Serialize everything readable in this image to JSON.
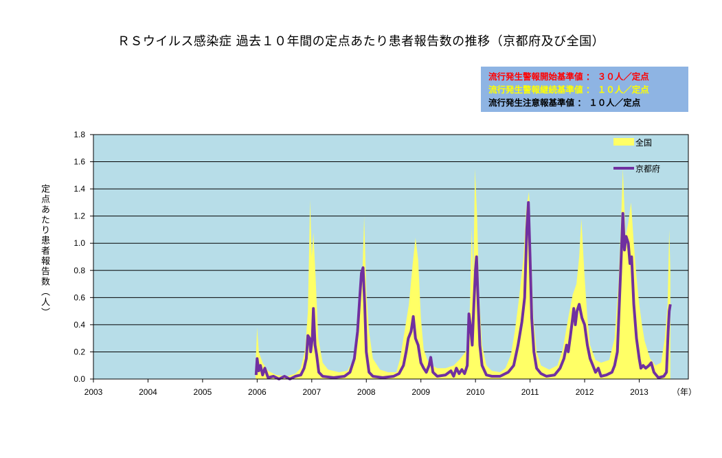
{
  "chart_data": {
    "type": "area",
    "title": "ＲＳウイルス感染症 過去１０年間の定点あたり患者報告数の推移（京都府及び全国）",
    "ylabel": "定点あたり患者報告数（人）",
    "xlabel": "（年）",
    "ylim": [
      0,
      1.8
    ],
    "yticks": [
      "0.0",
      "0.2",
      "0.4",
      "0.6",
      "0.8",
      "1.0",
      "1.2",
      "1.4",
      "1.6",
      "1.8"
    ],
    "xlim": [
      2003,
      2013.9
    ],
    "xticks": [
      "2003",
      "2004",
      "2005",
      "2006",
      "2007",
      "2008",
      "2009",
      "2010",
      "2011",
      "2012",
      "2013"
    ],
    "grid": true,
    "legend_position": "top-right",
    "background_color": "#b7dde8",
    "series": [
      {
        "name": "全国",
        "kind": "area",
        "color": "#ffff66",
        "points": [
          [
            2005.97,
            0.1
          ],
          [
            2006.0,
            0.38
          ],
          [
            2006.03,
            0.2
          ],
          [
            2006.1,
            0.12
          ],
          [
            2006.2,
            0.06
          ],
          [
            2006.35,
            0.03
          ],
          [
            2006.55,
            0.02
          ],
          [
            2006.7,
            0.04
          ],
          [
            2006.8,
            0.08
          ],
          [
            2006.88,
            0.22
          ],
          [
            2006.93,
            0.5
          ],
          [
            2006.97,
            1.32
          ],
          [
            2007.0,
            0.9
          ],
          [
            2007.03,
            1.08
          ],
          [
            2007.07,
            0.75
          ],
          [
            2007.12,
            0.3
          ],
          [
            2007.2,
            0.12
          ],
          [
            2007.3,
            0.07
          ],
          [
            2007.5,
            0.05
          ],
          [
            2007.65,
            0.06
          ],
          [
            2007.78,
            0.15
          ],
          [
            2007.85,
            0.35
          ],
          [
            2007.9,
            0.65
          ],
          [
            2007.93,
            0.8
          ],
          [
            2007.96,
            1.2
          ],
          [
            2008.0,
            0.65
          ],
          [
            2008.05,
            0.35
          ],
          [
            2008.12,
            0.15
          ],
          [
            2008.25,
            0.07
          ],
          [
            2008.4,
            0.05
          ],
          [
            2008.55,
            0.05
          ],
          [
            2008.62,
            0.15
          ],
          [
            2008.7,
            0.35
          ],
          [
            2008.78,
            0.55
          ],
          [
            2008.85,
            0.85
          ],
          [
            2008.9,
            1.04
          ],
          [
            2008.95,
            0.88
          ],
          [
            2009.0,
            0.45
          ],
          [
            2009.05,
            0.22
          ],
          [
            2009.12,
            0.14
          ],
          [
            2009.2,
            0.1
          ],
          [
            2009.3,
            0.08
          ],
          [
            2009.45,
            0.08
          ],
          [
            2009.6,
            0.1
          ],
          [
            2009.7,
            0.14
          ],
          [
            2009.78,
            0.18
          ],
          [
            2009.85,
            0.22
          ],
          [
            2009.9,
            0.55
          ],
          [
            2009.93,
            1.12
          ],
          [
            2009.96,
            0.75
          ],
          [
            2009.99,
            1.55
          ],
          [
            2010.03,
            1.2
          ],
          [
            2010.07,
            0.6
          ],
          [
            2010.12,
            0.25
          ],
          [
            2010.2,
            0.1
          ],
          [
            2010.3,
            0.06
          ],
          [
            2010.45,
            0.05
          ],
          [
            2010.55,
            0.08
          ],
          [
            2010.65,
            0.18
          ],
          [
            2010.72,
            0.35
          ],
          [
            2010.8,
            0.6
          ],
          [
            2010.88,
            0.9
          ],
          [
            2010.93,
            1.25
          ],
          [
            2010.98,
            1.38
          ],
          [
            2011.02,
            0.95
          ],
          [
            2011.06,
            0.45
          ],
          [
            2011.12,
            0.2
          ],
          [
            2011.2,
            0.1
          ],
          [
            2011.35,
            0.07
          ],
          [
            2011.5,
            0.1
          ],
          [
            2011.6,
            0.22
          ],
          [
            2011.7,
            0.45
          ],
          [
            2011.78,
            0.62
          ],
          [
            2011.85,
            0.7
          ],
          [
            2011.9,
            0.9
          ],
          [
            2011.94,
            1.18
          ],
          [
            2012.0,
            0.75
          ],
          [
            2012.05,
            0.45
          ],
          [
            2012.1,
            0.25
          ],
          [
            2012.2,
            0.14
          ],
          [
            2012.3,
            0.12
          ],
          [
            2012.45,
            0.14
          ],
          [
            2012.55,
            0.3
          ],
          [
            2012.62,
            0.7
          ],
          [
            2012.67,
            1.2
          ],
          [
            2012.7,
            1.55
          ],
          [
            2012.75,
            1.05
          ],
          [
            2012.8,
            1.15
          ],
          [
            2012.85,
            1.3
          ],
          [
            2012.9,
            1.0
          ],
          [
            2012.95,
            0.75
          ],
          [
            2013.0,
            0.55
          ],
          [
            2013.05,
            0.4
          ],
          [
            2013.1,
            0.28
          ],
          [
            2013.2,
            0.15
          ],
          [
            2013.3,
            0.1
          ],
          [
            2013.4,
            0.12
          ],
          [
            2013.47,
            0.3
          ],
          [
            2013.52,
            0.55
          ],
          [
            2013.55,
            1.1
          ],
          [
            2013.57,
            0.8
          ]
        ]
      },
      {
        "name": "京都府",
        "kind": "line",
        "color": "#7030a0",
        "points": [
          [
            2005.98,
            0.03
          ],
          [
            2006.0,
            0.15
          ],
          [
            2006.03,
            0.06
          ],
          [
            2006.06,
            0.1
          ],
          [
            2006.1,
            0.03
          ],
          [
            2006.14,
            0.08
          ],
          [
            2006.2,
            0.01
          ],
          [
            2006.3,
            0.02
          ],
          [
            2006.4,
            0.0
          ],
          [
            2006.5,
            0.02
          ],
          [
            2006.6,
            0.0
          ],
          [
            2006.7,
            0.02
          ],
          [
            2006.8,
            0.03
          ],
          [
            2006.86,
            0.08
          ],
          [
            2006.9,
            0.15
          ],
          [
            2006.93,
            0.32
          ],
          [
            2006.96,
            0.3
          ],
          [
            2006.98,
            0.2
          ],
          [
            2007.01,
            0.3
          ],
          [
            2007.03,
            0.52
          ],
          [
            2007.06,
            0.25
          ],
          [
            2007.09,
            0.18
          ],
          [
            2007.13,
            0.05
          ],
          [
            2007.2,
            0.02
          ],
          [
            2007.4,
            0.01
          ],
          [
            2007.6,
            0.02
          ],
          [
            2007.7,
            0.05
          ],
          [
            2007.78,
            0.15
          ],
          [
            2007.84,
            0.35
          ],
          [
            2007.88,
            0.6
          ],
          [
            2007.91,
            0.78
          ],
          [
            2007.94,
            0.82
          ],
          [
            2007.97,
            0.55
          ],
          [
            2008.0,
            0.2
          ],
          [
            2008.05,
            0.05
          ],
          [
            2008.12,
            0.02
          ],
          [
            2008.3,
            0.01
          ],
          [
            2008.5,
            0.02
          ],
          [
            2008.6,
            0.04
          ],
          [
            2008.68,
            0.1
          ],
          [
            2008.73,
            0.2
          ],
          [
            2008.77,
            0.3
          ],
          [
            2008.82,
            0.35
          ],
          [
            2008.86,
            0.46
          ],
          [
            2008.9,
            0.3
          ],
          [
            2008.95,
            0.25
          ],
          [
            2009.0,
            0.12
          ],
          [
            2009.05,
            0.08
          ],
          [
            2009.1,
            0.05
          ],
          [
            2009.15,
            0.1
          ],
          [
            2009.18,
            0.16
          ],
          [
            2009.22,
            0.05
          ],
          [
            2009.3,
            0.02
          ],
          [
            2009.45,
            0.03
          ],
          [
            2009.55,
            0.06
          ],
          [
            2009.6,
            0.02
          ],
          [
            2009.65,
            0.08
          ],
          [
            2009.7,
            0.04
          ],
          [
            2009.75,
            0.07
          ],
          [
            2009.8,
            0.04
          ],
          [
            2009.85,
            0.1
          ],
          [
            2009.88,
            0.48
          ],
          [
            2009.91,
            0.38
          ],
          [
            2009.94,
            0.25
          ],
          [
            2009.97,
            0.55
          ],
          [
            2010.0,
            0.8
          ],
          [
            2010.02,
            0.9
          ],
          [
            2010.05,
            0.55
          ],
          [
            2010.08,
            0.25
          ],
          [
            2010.12,
            0.1
          ],
          [
            2010.2,
            0.03
          ],
          [
            2010.3,
            0.02
          ],
          [
            2010.45,
            0.02
          ],
          [
            2010.6,
            0.05
          ],
          [
            2010.7,
            0.1
          ],
          [
            2010.78,
            0.25
          ],
          [
            2010.85,
            0.42
          ],
          [
            2010.9,
            0.6
          ],
          [
            2010.94,
            1.1
          ],
          [
            2010.97,
            1.3
          ],
          [
            2011.0,
            0.9
          ],
          [
            2011.03,
            0.45
          ],
          [
            2011.07,
            0.2
          ],
          [
            2011.12,
            0.08
          ],
          [
            2011.2,
            0.04
          ],
          [
            2011.3,
            0.02
          ],
          [
            2011.45,
            0.03
          ],
          [
            2011.55,
            0.08
          ],
          [
            2011.62,
            0.15
          ],
          [
            2011.67,
            0.25
          ],
          [
            2011.7,
            0.2
          ],
          [
            2011.74,
            0.32
          ],
          [
            2011.78,
            0.45
          ],
          [
            2011.8,
            0.52
          ],
          [
            2011.83,
            0.4
          ],
          [
            2011.86,
            0.5
          ],
          [
            2011.9,
            0.55
          ],
          [
            2011.95,
            0.45
          ],
          [
            2012.0,
            0.4
          ],
          [
            2012.05,
            0.25
          ],
          [
            2012.1,
            0.15
          ],
          [
            2012.15,
            0.1
          ],
          [
            2012.2,
            0.05
          ],
          [
            2012.25,
            0.08
          ],
          [
            2012.3,
            0.02
          ],
          [
            2012.4,
            0.03
          ],
          [
            2012.5,
            0.05
          ],
          [
            2012.55,
            0.1
          ],
          [
            2012.6,
            0.2
          ],
          [
            2012.64,
            0.6
          ],
          [
            2012.67,
            0.9
          ],
          [
            2012.7,
            1.22
          ],
          [
            2012.73,
            0.95
          ],
          [
            2012.76,
            1.05
          ],
          [
            2012.8,
            1.0
          ],
          [
            2012.83,
            0.85
          ],
          [
            2012.86,
            0.9
          ],
          [
            2012.9,
            0.55
          ],
          [
            2012.95,
            0.3
          ],
          [
            2013.0,
            0.15
          ],
          [
            2013.03,
            0.08
          ],
          [
            2013.07,
            0.1
          ],
          [
            2013.12,
            0.08
          ],
          [
            2013.18,
            0.1
          ],
          [
            2013.22,
            0.12
          ],
          [
            2013.27,
            0.05
          ],
          [
            2013.35,
            0.01
          ],
          [
            2013.45,
            0.02
          ],
          [
            2013.5,
            0.05
          ],
          [
            2013.53,
            0.35
          ],
          [
            2013.55,
            0.5
          ],
          [
            2013.57,
            0.55
          ]
        ]
      }
    ]
  },
  "criteria": [
    {
      "text": "流行発生警報開始基準値 ： ３０人／定点",
      "color": "#ff0000"
    },
    {
      "text": "流行発生警報継続基準値 ： １０人／定点",
      "color": "#ffff00"
    },
    {
      "text": "流行発生注意報基準値 ： １０人／定点",
      "color": "#000000"
    }
  ],
  "legend": {
    "area_label": "全国",
    "line_label": "京都府"
  }
}
